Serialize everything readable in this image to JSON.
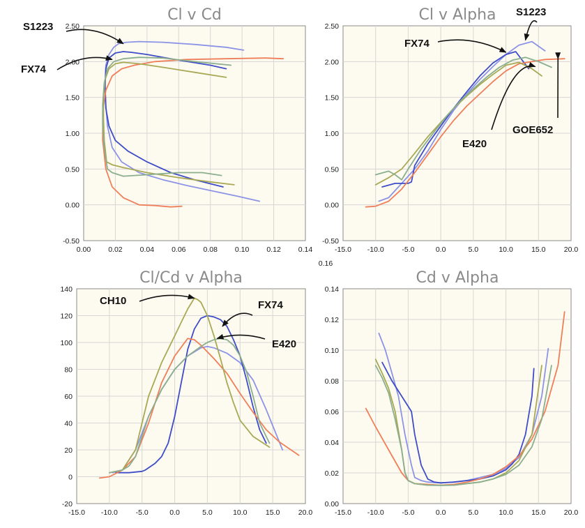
{
  "colors": {
    "plot_bg": "#fdfbef",
    "grid": "#d6d6d6",
    "axis": "#888888",
    "blue_light": "#8c93e6",
    "blue_dark": "#3e4cc8",
    "orange": "#ee7f5a",
    "olive": "#a8a855",
    "green": "#8aae8e"
  },
  "chart_data": [
    {
      "id": "cl_cd",
      "type": "line",
      "title": "Cl v Cd",
      "xlim": [
        0,
        0.14
      ],
      "ylim": [
        -0.5,
        2.5
      ],
      "xticks": [
        "0.00",
        "0.02",
        "0.04",
        "0.06",
        "0.08",
        "0.10",
        "0.12",
        "0.14"
      ],
      "yticks": [
        "-0.50",
        "0.00",
        "0.50",
        "1.00",
        "1.50",
        "2.00",
        "2.50"
      ],
      "series": [
        {
          "name": "S1223",
          "color": "blue_light",
          "x": [
            0.111,
            0.097,
            0.08,
            0.065,
            0.05,
            0.035,
            0.024,
            0.018,
            0.015,
            0.014,
            0.0135,
            0.014,
            0.016,
            0.019,
            0.022,
            0.027,
            0.035,
            0.05,
            0.07,
            0.09,
            0.101
          ],
          "y": [
            0.05,
            0.12,
            0.2,
            0.27,
            0.35,
            0.45,
            0.6,
            0.8,
            1.1,
            1.4,
            1.7,
            1.95,
            2.1,
            2.2,
            2.25,
            2.27,
            2.28,
            2.27,
            2.24,
            2.2,
            2.16
          ]
        },
        {
          "name": "FX74",
          "color": "blue_dark",
          "x": [
            0.088,
            0.07,
            0.055,
            0.04,
            0.028,
            0.02,
            0.016,
            0.014,
            0.0135,
            0.014,
            0.016,
            0.02,
            0.025,
            0.03,
            0.04,
            0.06,
            0.08,
            0.09
          ],
          "y": [
            0.25,
            0.35,
            0.45,
            0.6,
            0.75,
            0.9,
            1.1,
            1.35,
            1.65,
            1.9,
            2.05,
            2.12,
            2.14,
            2.13,
            2.1,
            2.02,
            1.95,
            1.9
          ]
        },
        {
          "name": "GOE652",
          "color": "orange",
          "x": [
            0.062,
            0.055,
            0.045,
            0.035,
            0.025,
            0.018,
            0.014,
            0.012,
            0.012,
            0.014,
            0.018,
            0.024,
            0.032,
            0.045,
            0.065,
            0.09,
            0.115,
            0.126
          ],
          "y": [
            -0.02,
            -0.03,
            -0.01,
            0.0,
            0.1,
            0.25,
            0.5,
            0.9,
            1.3,
            1.6,
            1.8,
            1.9,
            1.95,
            2.0,
            2.03,
            2.04,
            2.05,
            2.04
          ]
        },
        {
          "name": "CH10",
          "color": "olive",
          "x": [
            0.095,
            0.08,
            0.06,
            0.04,
            0.025,
            0.018,
            0.0145,
            0.013,
            0.0125,
            0.0125,
            0.0135,
            0.016,
            0.02,
            0.025,
            0.035,
            0.05,
            0.07,
            0.09
          ],
          "y": [
            0.28,
            0.32,
            0.38,
            0.45,
            0.52,
            0.56,
            0.6,
            0.9,
            1.2,
            1.5,
            1.75,
            1.9,
            1.97,
            1.99,
            1.97,
            1.92,
            1.85,
            1.78
          ]
        },
        {
          "name": "E420",
          "color": "green",
          "x": [
            0.087,
            0.075,
            0.06,
            0.04,
            0.025,
            0.018,
            0.015,
            0.013,
            0.012,
            0.012,
            0.013,
            0.015,
            0.019,
            0.025,
            0.035,
            0.05,
            0.07,
            0.093
          ],
          "y": [
            0.41,
            0.45,
            0.45,
            0.42,
            0.4,
            0.45,
            0.5,
            0.8,
            1.1,
            1.4,
            1.7,
            1.9,
            2.0,
            2.04,
            2.06,
            2.05,
            2.0,
            1.95
          ]
        }
      ],
      "annotations": [
        {
          "text": "S1223",
          "target": [
            0.025,
            2.25
          ]
        },
        {
          "text": "FX74",
          "target": [
            0.018,
            2.03
          ]
        }
      ]
    },
    {
      "id": "cl_alpha",
      "type": "line",
      "title": "Cl v Alpha",
      "xlim": [
        -15,
        20
      ],
      "ylim": [
        -0.5,
        2.5
      ],
      "xticks": [
        "-15.0",
        "-10.0",
        "-5.0",
        "0.0",
        "5.0",
        "10.0",
        "15.0",
        "20.0"
      ],
      "yticks": [
        "-0.50",
        "0.00",
        "0.50",
        "1.00",
        "1.50",
        "2.00",
        "2.50"
      ],
      "series": [
        {
          "name": "S1223",
          "color": "blue_light",
          "x": [
            -9.5,
            -8,
            -6,
            -4,
            -2,
            0,
            2,
            4,
            6,
            8,
            10,
            12,
            14,
            16
          ],
          "y": [
            0.05,
            0.1,
            0.3,
            0.5,
            0.75,
            1.05,
            1.32,
            1.55,
            1.75,
            1.93,
            2.1,
            2.23,
            2.28,
            2.15
          ]
        },
        {
          "name": "FX74",
          "color": "blue_dark",
          "x": [
            -9,
            -7,
            -5,
            -4.5,
            -4,
            -2,
            0,
            2,
            4,
            6,
            8,
            10,
            11.5,
            13.5
          ],
          "y": [
            0.25,
            0.3,
            0.3,
            0.32,
            0.55,
            0.85,
            1.1,
            1.35,
            1.58,
            1.8,
            1.98,
            2.1,
            2.14,
            1.9
          ]
        },
        {
          "name": "GOE652",
          "color": "orange",
          "x": [
            -11.5,
            -10,
            -8,
            -6,
            -4,
            -2,
            0,
            2,
            4,
            6,
            8,
            10,
            12,
            14,
            16,
            19
          ],
          "y": [
            -0.03,
            -0.02,
            0.05,
            0.22,
            0.45,
            0.7,
            0.95,
            1.18,
            1.38,
            1.55,
            1.72,
            1.87,
            1.97,
            2.0,
            2.03,
            2.04
          ]
        },
        {
          "name": "CH10",
          "color": "olive",
          "x": [
            -10,
            -8,
            -6,
            -4,
            -2,
            0,
            2,
            4,
            6,
            8,
            10,
            12,
            14,
            15.5
          ],
          "y": [
            0.28,
            0.38,
            0.5,
            0.72,
            0.95,
            1.15,
            1.35,
            1.52,
            1.68,
            1.82,
            1.95,
            1.99,
            1.9,
            1.8
          ]
        },
        {
          "name": "E420",
          "color": "green",
          "x": [
            -10,
            -8,
            -7,
            -6,
            -5,
            -3,
            -1,
            1,
            3,
            5,
            7,
            9,
            11,
            13,
            15,
            17
          ],
          "y": [
            0.42,
            0.47,
            0.42,
            0.35,
            0.5,
            0.78,
            1.02,
            1.25,
            1.45,
            1.62,
            1.78,
            1.92,
            2.02,
            2.06,
            2.0,
            1.92
          ]
        }
      ],
      "annotations": [
        {
          "text": "S1223",
          "target": [
            13,
            2.3
          ]
        },
        {
          "text": "FX74",
          "target": [
            10,
            2.13
          ]
        },
        {
          "text": "E420",
          "target": [
            14.5,
            1.93
          ]
        },
        {
          "text": "GOE652",
          "target": [
            18,
            2.04
          ]
        }
      ]
    },
    {
      "id": "clcd_alpha",
      "type": "line",
      "title": "Cl/Cd v Alpha",
      "xlim": [
        -15,
        20
      ],
      "ylim": [
        -20,
        140
      ],
      "xticks": [
        "-15.0",
        "-10.0",
        "-5.0",
        "0.0",
        "5.0",
        "10.0",
        "15.0",
        "20.0"
      ],
      "yticks": [
        "-20",
        "0",
        "20",
        "40",
        "60",
        "80",
        "100",
        "120",
        "140"
      ],
      "series": [
        {
          "name": "S1223",
          "color": "blue_light",
          "x": [
            -9.5,
            -8,
            -6,
            -4,
            -2,
            0,
            2,
            4,
            5,
            6,
            8,
            10,
            12,
            14,
            16.5
          ],
          "y": [
            3,
            5,
            20,
            45,
            65,
            80,
            90,
            96,
            97,
            96,
            92,
            85,
            72,
            50,
            20
          ]
        },
        {
          "name": "FX74",
          "color": "blue_dark",
          "x": [
            -9,
            -7,
            -5,
            -4.5,
            -3,
            -2,
            -1,
            0,
            1,
            2,
            3,
            4,
            5,
            6,
            7,
            8,
            9,
            10,
            11,
            12,
            13,
            14
          ],
          "y": [
            3,
            3,
            4,
            5,
            10,
            15,
            25,
            45,
            70,
            95,
            110,
            118,
            120,
            119,
            117,
            112,
            102,
            90,
            72,
            52,
            35,
            25
          ]
        },
        {
          "name": "GOE652",
          "color": "orange",
          "x": [
            -11.5,
            -10,
            -8,
            -6,
            -4,
            -2,
            0,
            2,
            3,
            4,
            6,
            8,
            10,
            12,
            14,
            16,
            19
          ],
          "y": [
            -1,
            0,
            5,
            15,
            40,
            70,
            90,
            103,
            102,
            98,
            88,
            77,
            62,
            48,
            35,
            26,
            16
          ]
        },
        {
          "name": "CH10",
          "color": "olive",
          "x": [
            -10,
            -8,
            -6,
            -5,
            -4,
            -2,
            0,
            1,
            2,
            3,
            3.5,
            4,
            5,
            6,
            7,
            8,
            9,
            10,
            12,
            14.5
          ],
          "y": [
            3,
            5,
            20,
            40,
            60,
            85,
            105,
            115,
            125,
            133,
            132,
            130,
            120,
            105,
            88,
            70,
            55,
            42,
            30,
            22
          ]
        },
        {
          "name": "E420",
          "color": "green",
          "x": [
            -10,
            -8,
            -7,
            -6,
            -5,
            -4,
            -2,
            0,
            2,
            4,
            5,
            6,
            7,
            8,
            9,
            10,
            11,
            12,
            13,
            14.5
          ],
          "y": [
            3,
            5,
            8,
            15,
            30,
            45,
            65,
            80,
            90,
            97,
            100,
            102,
            103,
            102,
            98,
            90,
            78,
            60,
            40,
            25
          ]
        }
      ],
      "annotations": [
        {
          "text": "CH10",
          "target": [
            3,
            133
          ]
        },
        {
          "text": "FX74",
          "target": [
            7.3,
            112
          ]
        },
        {
          "text": "E420",
          "target": [
            6.5,
            103
          ]
        }
      ]
    },
    {
      "id": "cd_alpha",
      "type": "line",
      "title": "Cd v Alpha",
      "xlim": [
        -15,
        20
      ],
      "ylim": [
        0,
        0.14
      ],
      "xticks": [
        "-15.0",
        "-10.0",
        "-5.0",
        "0.0",
        "5.0",
        "10.0",
        "15.0",
        "20.0"
      ],
      "yticks": [
        "0.00",
        "0.02",
        "0.04",
        "0.06",
        "0.08",
        "0.10",
        "0.12",
        "0.14"
      ],
      "extra_tick": "0.16",
      "series": [
        {
          "name": "S1223",
          "color": "blue_light",
          "x": [
            -9.5,
            -8.5,
            -7.5,
            -6.5,
            -5.5,
            -4.5,
            -4,
            -3,
            -2,
            0,
            2,
            4,
            6,
            8,
            10,
            12,
            14,
            15.5,
            16.5
          ],
          "y": [
            0.111,
            0.1,
            0.085,
            0.07,
            0.045,
            0.025,
            0.017,
            0.015,
            0.014,
            0.0135,
            0.014,
            0.015,
            0.017,
            0.019,
            0.023,
            0.03,
            0.045,
            0.07,
            0.101
          ]
        },
        {
          "name": "FX74",
          "color": "blue_dark",
          "x": [
            -9,
            -7.5,
            -6,
            -4.5,
            -4,
            -3.5,
            -3,
            -2,
            -1,
            0,
            2,
            4,
            6,
            8,
            10,
            11,
            12,
            13,
            14,
            14.3
          ],
          "y": [
            0.092,
            0.08,
            0.07,
            0.06,
            0.045,
            0.035,
            0.025,
            0.016,
            0.014,
            0.0135,
            0.014,
            0.015,
            0.016,
            0.018,
            0.022,
            0.026,
            0.032,
            0.045,
            0.07,
            0.088
          ]
        },
        {
          "name": "GOE652",
          "color": "orange",
          "x": [
            -11.5,
            -10,
            -8,
            -6,
            -5,
            -4,
            -2,
            0,
            2,
            4,
            6,
            8,
            10,
            12,
            14,
            16,
            18,
            19
          ],
          "y": [
            0.062,
            0.05,
            0.035,
            0.02,
            0.015,
            0.013,
            0.0125,
            0.012,
            0.0125,
            0.014,
            0.016,
            0.019,
            0.024,
            0.031,
            0.042,
            0.06,
            0.09,
            0.125
          ]
        },
        {
          "name": "CH10",
          "color": "olive",
          "x": [
            -10,
            -9,
            -8,
            -7,
            -6,
            -5.5,
            -5,
            -4,
            -2,
            0,
            2,
            4,
            6,
            8,
            10,
            12,
            14,
            15.5
          ],
          "y": [
            0.094,
            0.085,
            0.075,
            0.06,
            0.035,
            0.02,
            0.015,
            0.013,
            0.012,
            0.012,
            0.012,
            0.013,
            0.014,
            0.016,
            0.02,
            0.028,
            0.045,
            0.09
          ]
        },
        {
          "name": "E420",
          "color": "green",
          "x": [
            -10,
            -9,
            -8,
            -7,
            -6,
            -5.5,
            -5,
            -4,
            -2,
            0,
            2,
            4,
            6,
            8,
            10,
            12,
            14,
            15.5,
            17
          ],
          "y": [
            0.09,
            0.082,
            0.072,
            0.055,
            0.035,
            0.02,
            0.015,
            0.013,
            0.012,
            0.0118,
            0.012,
            0.013,
            0.014,
            0.016,
            0.019,
            0.025,
            0.037,
            0.055,
            0.09
          ]
        }
      ],
      "annotations": []
    }
  ]
}
